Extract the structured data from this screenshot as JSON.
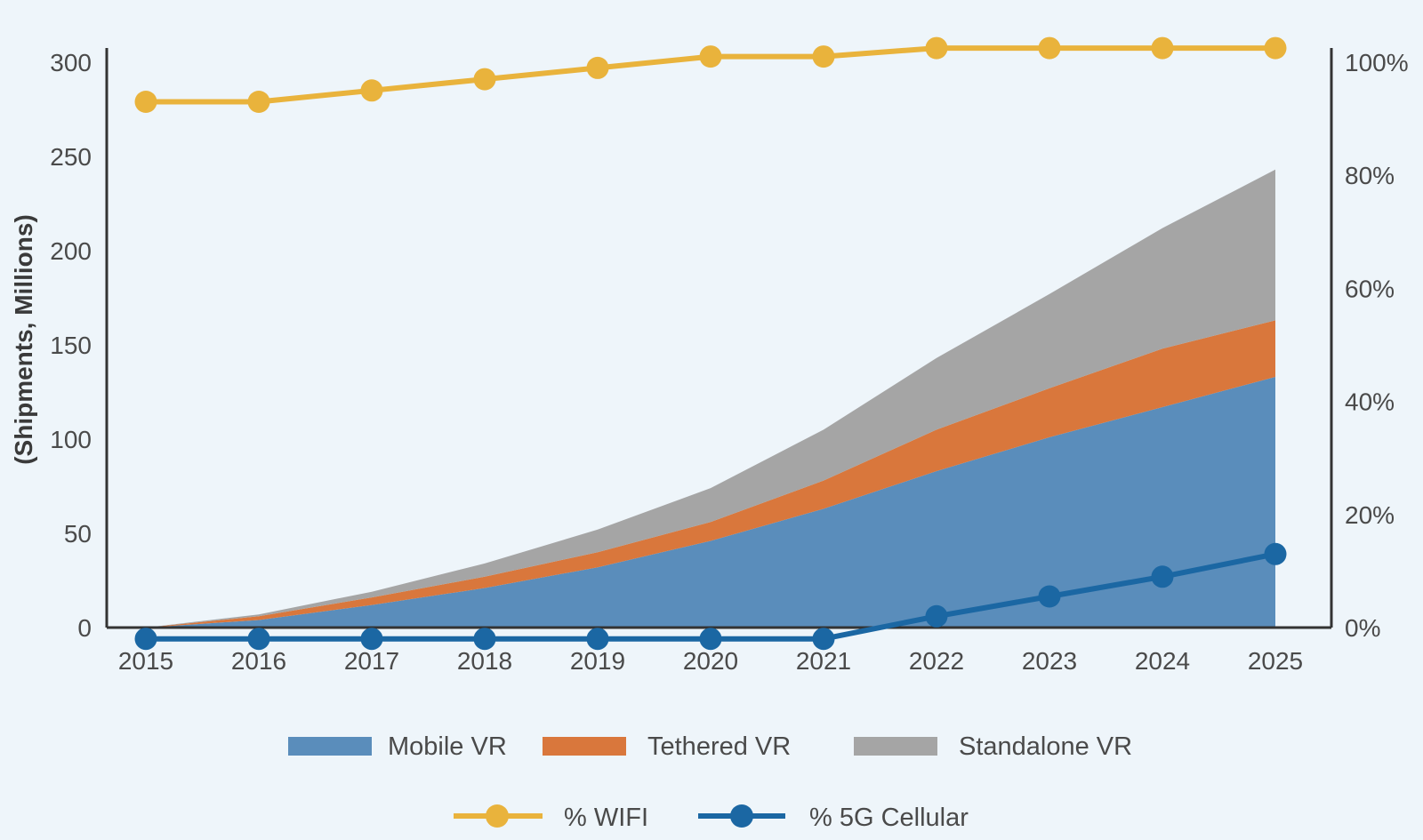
{
  "chart_data": {
    "type": "area",
    "x": [
      "2015",
      "2016",
      "2017",
      "2018",
      "2019",
      "2020",
      "2021",
      "2022",
      "2023",
      "2024",
      "2025"
    ],
    "ylabel": "(Shipments, Millions)",
    "ylim": [
      0,
      300
    ],
    "y_ticks": [
      "0",
      "50",
      "100",
      "150",
      "200",
      "250",
      "300"
    ],
    "y2lim": [
      0,
      100
    ],
    "y2_ticks": [
      "0%",
      "20%",
      "40%",
      "60%",
      "80%",
      "100%"
    ],
    "grid": false,
    "legend_position": "bottom",
    "stacked_area_series": [
      {
        "name": "Mobile VR",
        "color": "#5a8dbb",
        "values": [
          0,
          4,
          12,
          21,
          32,
          46,
          63,
          83,
          101,
          117,
          133
        ]
      },
      {
        "name": "Tethered VR",
        "color": "#d9773c",
        "values": [
          0,
          2,
          4,
          6,
          8,
          10,
          15,
          22,
          26,
          31,
          30
        ]
      },
      {
        "name": "Standalone VR",
        "color": "#a5a5a5",
        "values": [
          0,
          1,
          3,
          7,
          12,
          18,
          27,
          38,
          50,
          64,
          80
        ]
      }
    ],
    "line_series": [
      {
        "name": "% WIFI",
        "color": "#e9b33c",
        "axis": "right",
        "values": [
          93,
          93,
          95,
          97,
          99,
          101,
          101,
          102.5,
          102.5,
          102.5,
          102.5
        ]
      },
      {
        "name": "% 5G Cellular",
        "color": "#1b67a3",
        "axis": "right",
        "values": [
          -2,
          -2,
          -2,
          -2,
          -2,
          -2,
          -2,
          2,
          5.5,
          9,
          13
        ]
      }
    ]
  }
}
